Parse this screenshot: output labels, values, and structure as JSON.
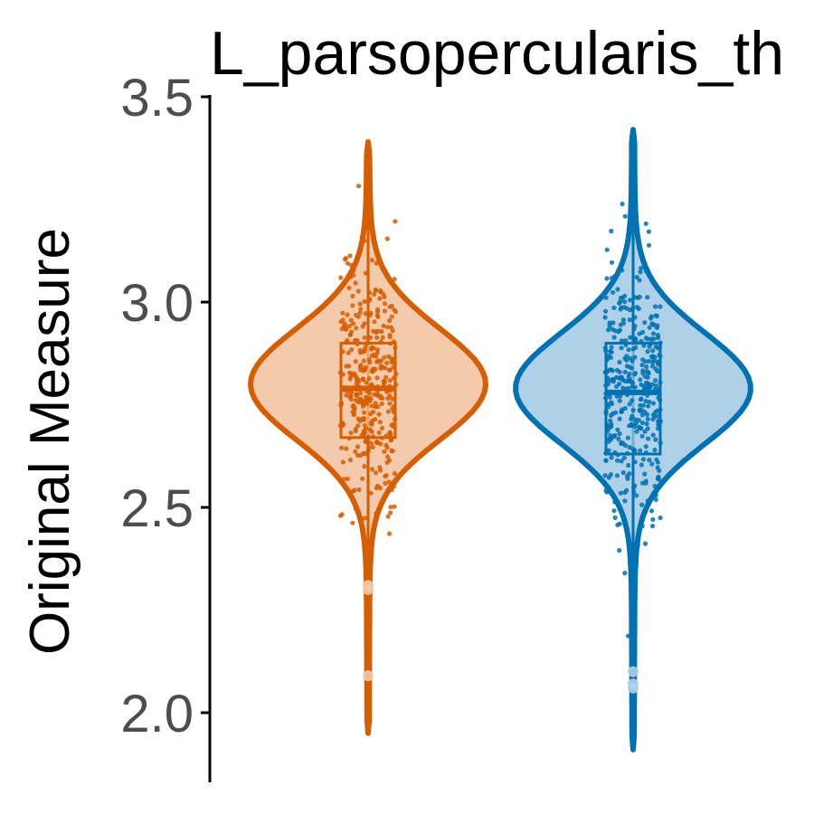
{
  "chart_data": {
    "type": "violin",
    "title": "L_parsopercularis_th",
    "ylabel": "Original Measure",
    "xlabel": "",
    "ylim": [
      1.85,
      3.5
    ],
    "yticks": [
      2.0,
      2.5,
      3.0,
      3.5
    ],
    "ytick_labels": [
      "2.0",
      "2.5",
      "3.0",
      "3.5"
    ],
    "grid": false,
    "legend": "none",
    "groups": [
      {
        "color": "#d55e00",
        "fill": "#f3cbac",
        "box": {
          "q1": 2.67,
          "median": 2.79,
          "q3": 2.9,
          "whisker_low": 2.33,
          "whisker_high": 3.25
        },
        "violin_range": [
          1.95,
          3.39
        ],
        "outliers": [
          2.09,
          2.3,
          2.31
        ]
      },
      {
        "color": "#0072b2",
        "fill": "#aed1e8",
        "box": {
          "q1": 2.63,
          "median": 2.78,
          "q3": 2.9,
          "whisker_low": 2.29,
          "whisker_high": 3.27
        },
        "violin_range": [
          1.91,
          3.42
        ],
        "outliers": [
          2.06,
          2.07,
          2.1
        ]
      }
    ]
  }
}
